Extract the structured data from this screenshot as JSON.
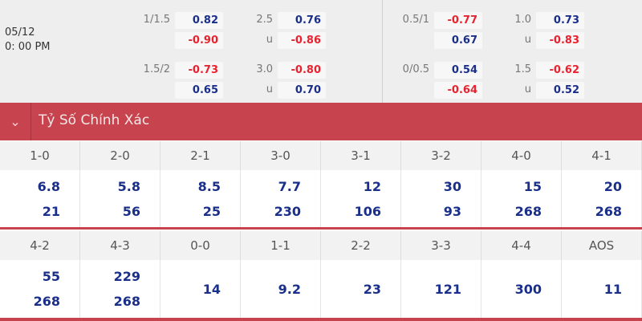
{
  "match": {
    "date": "05/12",
    "time": "0: 00 PM"
  },
  "odds": [
    {
      "lines": [
        {
          "label": "1/1.5",
          "a": "0.82",
          "b": "-0.90"
        },
        {
          "label": "2.5",
          "a": "0.76",
          "u": "u",
          "b": "-0.86"
        },
        {
          "label": "0.5/1",
          "a": "-0.77",
          "b": "0.67"
        },
        {
          "label": "1.0",
          "a": "0.73",
          "u": "u",
          "b": "-0.83"
        }
      ]
    },
    {
      "lines": [
        {
          "label": "1.5/2",
          "a": "-0.73",
          "b": "0.65"
        },
        {
          "label": "3.0",
          "a": "-0.80",
          "u": "u",
          "b": "0.70"
        },
        {
          "label": "0/0.5",
          "a": "0.54",
          "b": "-0.64"
        },
        {
          "label": "1.5",
          "a": "-0.62",
          "u": "u",
          "b": "0.52"
        }
      ]
    }
  ],
  "section": {
    "title": "Tỷ Số Chính Xác",
    "chevron": "chevron-down-icon"
  },
  "scores1": [
    {
      "s": "1-0",
      "v": [
        "6.8",
        "21"
      ]
    },
    {
      "s": "2-0",
      "v": [
        "5.8",
        "56"
      ]
    },
    {
      "s": "2-1",
      "v": [
        "8.5",
        "25"
      ]
    },
    {
      "s": "3-0",
      "v": [
        "7.7",
        "230"
      ]
    },
    {
      "s": "3-1",
      "v": [
        "12",
        "106"
      ]
    },
    {
      "s": "3-2",
      "v": [
        "30",
        "93"
      ]
    },
    {
      "s": "4-0",
      "v": [
        "15",
        "268"
      ]
    },
    {
      "s": "4-1",
      "v": [
        "20",
        "268"
      ]
    }
  ],
  "scores2": [
    {
      "s": "4-2",
      "v": [
        "55",
        "268"
      ]
    },
    {
      "s": "4-3",
      "v": [
        "229",
        "268"
      ]
    },
    {
      "s": "0-0",
      "v": [
        "14"
      ]
    },
    {
      "s": "1-1",
      "v": [
        "9.2"
      ]
    },
    {
      "s": "2-2",
      "v": [
        "23"
      ]
    },
    {
      "s": "3-3",
      "v": [
        "121"
      ]
    },
    {
      "s": "4-4",
      "v": [
        "300"
      ]
    },
    {
      "s": "AOS",
      "v": [
        "11"
      ]
    }
  ],
  "colors": {
    "header": "#c7434d",
    "positive": "#1a2f8a",
    "negative": "#e8232f"
  }
}
